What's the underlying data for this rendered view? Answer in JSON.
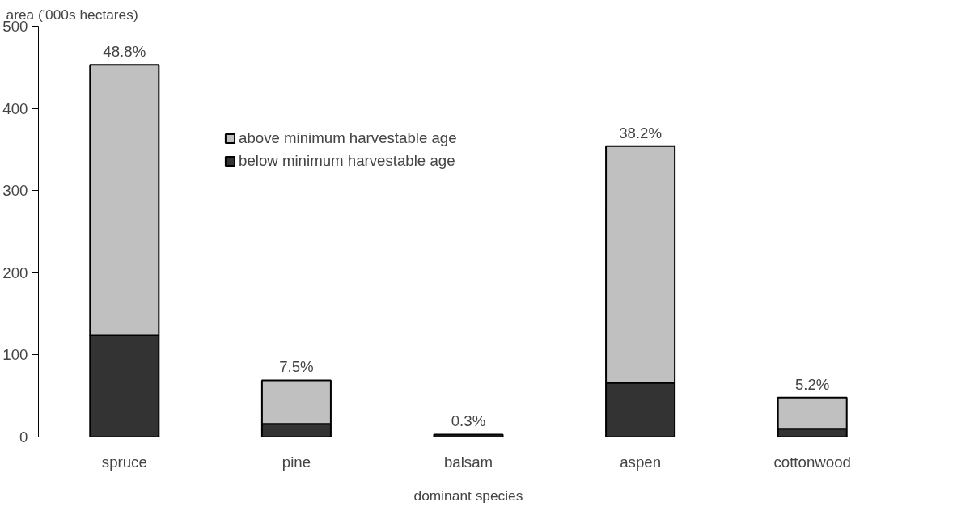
{
  "chart_data": {
    "type": "bar",
    "stacked": true,
    "xlabel": "dominant species",
    "ylabel": "area ('000s hectares)",
    "categories": [
      "spruce",
      "pine",
      "balsam",
      "aspen",
      "cottonwood"
    ],
    "series": [
      {
        "name": "below minimum harvestable age",
        "color": "#333333",
        "values": [
          124,
          16,
          3,
          66,
          10
        ]
      },
      {
        "name": "above minimum harvestable age",
        "color": "#c0c0c0",
        "values": [
          329,
          53,
          null,
          288,
          38
        ]
      }
    ],
    "ylim": [
      0,
      500
    ],
    "yticks": [
      0,
      100,
      200,
      300,
      400,
      500
    ],
    "grid": false,
    "legend": "top left",
    "annotations": [
      {
        "text": "48.8%",
        "x": "spruce",
        "y": 453
      },
      {
        "text": "7.5%",
        "x": "pine",
        "y": 69
      },
      {
        "text": "0.3%",
        "x": "balsam",
        "y": 3
      },
      {
        "text": "38.2%",
        "x": "aspen",
        "y": 354
      },
      {
        "text": "5.2%",
        "x": "cottonwood",
        "y": 48
      }
    ]
  }
}
